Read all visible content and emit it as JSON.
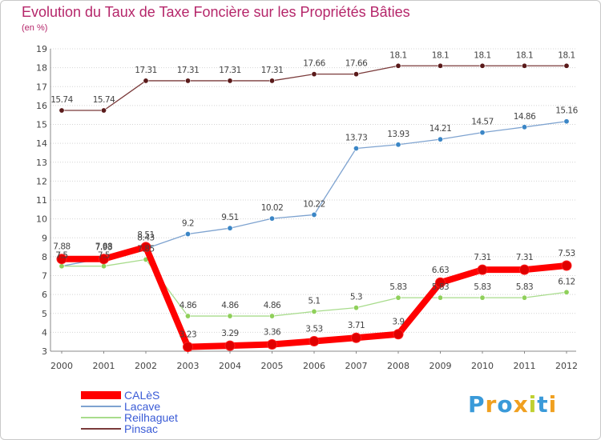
{
  "title": "Evolution du Taux de Taxe Foncière sur les Propriétés Bâties",
  "unit_label": "(en %)",
  "brand": "Proxiti",
  "chart_data": {
    "type": "line",
    "title": "Evolution du Taux de Taxe Foncière sur les Propriétés Bâties",
    "ylabel": "(en %)",
    "xlabel": "",
    "ylim": [
      3,
      19
    ],
    "grid": "dotted horizontal",
    "categories": [
      "2000",
      "2001",
      "2002",
      "2003",
      "2004",
      "2005",
      "2006",
      "2007",
      "2008",
      "2009",
      "2010",
      "2011",
      "2012"
    ],
    "yticks": [
      "3",
      "4",
      "5",
      "6",
      "7",
      "8",
      "9",
      "10",
      "11",
      "12",
      "13",
      "14",
      "15",
      "16",
      "17",
      "18",
      "19"
    ],
    "series": [
      {
        "name": "CALèS",
        "color": "#ff0000",
        "marker": "#e00000",
        "values": [
          7.88,
          7.88,
          8.51,
          3.23,
          3.29,
          3.36,
          3.53,
          3.71,
          3.9,
          6.63,
          7.31,
          7.31,
          7.53
        ],
        "labels": [
          "7.88",
          "7.88",
          "8.51",
          "3.23",
          "3.29",
          "3.36",
          "3.53",
          "3.71",
          "3.9",
          "6.63",
          "7.31",
          "7.31",
          "7.53"
        ]
      },
      {
        "name": "Lacave",
        "color": "#7ea3d0",
        "marker": "#3b86c6",
        "values": [
          7.5,
          7.93,
          8.43,
          9.2,
          9.51,
          10.02,
          10.22,
          13.73,
          13.93,
          14.21,
          14.57,
          14.86,
          15.16
        ],
        "labels": [
          "7.5",
          "7.93",
          "8.43",
          "9.2",
          "9.51",
          "10.02",
          "10.22",
          "13.73",
          "13.93",
          "14.21",
          "14.57",
          "14.86",
          "15.16"
        ]
      },
      {
        "name": "Reilhaguet",
        "color": "#a8dc8c",
        "marker": "#8fd05a",
        "values": [
          7.5,
          7.5,
          7.85,
          4.86,
          4.86,
          4.86,
          5.1,
          5.3,
          5.83,
          5.83,
          5.83,
          5.83,
          6.12
        ],
        "labels": [
          "7.5",
          "7.5",
          "7.85",
          "4.86",
          "4.86",
          "4.86",
          "5.1",
          "5.3",
          "5.83",
          "5.83",
          "5.83",
          "5.83",
          "6.12"
        ]
      },
      {
        "name": "Pinsac",
        "color": "#7a3a3a",
        "marker": "#5a1a1a",
        "values": [
          15.74,
          15.74,
          17.31,
          17.31,
          17.31,
          17.31,
          17.66,
          17.66,
          18.1,
          18.1,
          18.1,
          18.1,
          18.1
        ],
        "labels": [
          "15.74",
          "15.74",
          "17.31",
          "17.31",
          "17.31",
          "17.31",
          "17.66",
          "17.66",
          "18.1",
          "18.1",
          "18.1",
          "18.1",
          "18.1"
        ]
      }
    ],
    "legend": [
      "CALèS",
      "Lacave",
      "Reilhaguet",
      "Pinsac"
    ],
    "legend_position": "bottom-left"
  }
}
